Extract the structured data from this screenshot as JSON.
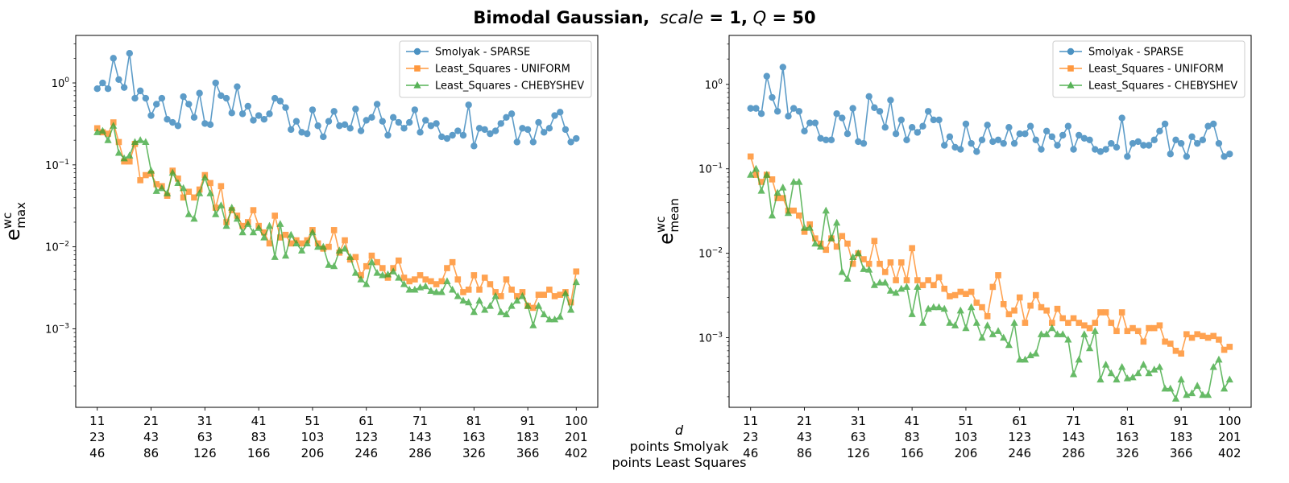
{
  "figure": {
    "title_bold": "Bimodal Gaussian,",
    "title_scale_var": "scale",
    "title_scale_eq": " = 1,",
    "title_q_var": "Q",
    "title_q_eq": " = 50"
  },
  "xaxis_row_labels": [
    "d",
    "points Smolyak",
    "points Least Squares"
  ],
  "x_ticks": [
    {
      "d": "11",
      "smolyak": "23",
      "ls": "46"
    },
    {
      "d": "21",
      "smolyak": "43",
      "ls": "86"
    },
    {
      "d": "31",
      "smolyak": "63",
      "ls": "126"
    },
    {
      "d": "41",
      "smolyak": "83",
      "ls": "166"
    },
    {
      "d": "51",
      "smolyak": "103",
      "ls": "206"
    },
    {
      "d": "61",
      "smolyak": "123",
      "ls": "246"
    },
    {
      "d": "71",
      "smolyak": "143",
      "ls": "286"
    },
    {
      "d": "81",
      "smolyak": "163",
      "ls": "326"
    },
    {
      "d": "91",
      "smolyak": "183",
      "ls": "366"
    },
    {
      "d": "100",
      "smolyak": "201",
      "ls": "402"
    }
  ],
  "series_styles": [
    {
      "name": "Smolyak - SPARSE",
      "color": "#1f77b4",
      "marker": "circle"
    },
    {
      "name": "Least_Squares - UNIFORM",
      "color": "#ff7f0e",
      "marker": "square"
    },
    {
      "name": "Least_Squares - CHEBYSHEV",
      "color": "#2ca02c",
      "marker": "triangle"
    }
  ],
  "chart_data": [
    {
      "type": "line",
      "ylabel_base": "e",
      "ylabel_sup": "wc",
      "ylabel_sub": "max",
      "yscale": "log",
      "ylim": [
        0.00011,
        3.8
      ],
      "xlim": [
        7,
        104
      ],
      "y_tick_labels": [
        {
          "base": "10",
          "exp": "0",
          "value": 1
        },
        {
          "base": "10",
          "exp": "−1",
          "value": 0.1
        },
        {
          "base": "10",
          "exp": "−2",
          "value": 0.01
        },
        {
          "base": "10",
          "exp": "−3",
          "value": 0.001
        }
      ],
      "legend_position": "top-right",
      "x": [
        11,
        12,
        13,
        14,
        15,
        16,
        17,
        18,
        19,
        20,
        21,
        22,
        23,
        24,
        25,
        26,
        27,
        28,
        29,
        30,
        31,
        32,
        33,
        34,
        35,
        36,
        37,
        38,
        39,
        40,
        41,
        42,
        43,
        44,
        45,
        46,
        47,
        48,
        49,
        50,
        51,
        52,
        53,
        54,
        55,
        56,
        57,
        58,
        59,
        60,
        61,
        62,
        63,
        64,
        65,
        66,
        67,
        68,
        69,
        70,
        71,
        72,
        73,
        74,
        75,
        76,
        77,
        78,
        79,
        80,
        81,
        82,
        83,
        84,
        85,
        86,
        87,
        88,
        89,
        90,
        91,
        92,
        93,
        94,
        95,
        96,
        97,
        98,
        99,
        100
      ],
      "series": [
        {
          "name": "Smolyak - SPARSE",
          "values": [
            0.85,
            1.0,
            0.85,
            2.0,
            1.1,
            0.88,
            2.3,
            0.65,
            0.8,
            0.65,
            0.4,
            0.55,
            0.65,
            0.36,
            0.33,
            0.3,
            0.68,
            0.55,
            0.38,
            0.75,
            0.32,
            0.31,
            1.0,
            0.7,
            0.65,
            0.43,
            0.9,
            0.42,
            0.52,
            0.35,
            0.4,
            0.36,
            0.42,
            0.65,
            0.6,
            0.5,
            0.27,
            0.34,
            0.25,
            0.24,
            0.47,
            0.3,
            0.22,
            0.34,
            0.45,
            0.3,
            0.31,
            0.28,
            0.48,
            0.26,
            0.35,
            0.38,
            0.55,
            0.34,
            0.23,
            0.38,
            0.33,
            0.28,
            0.33,
            0.47,
            0.25,
            0.35,
            0.3,
            0.32,
            0.22,
            0.21,
            0.23,
            0.26,
            0.23,
            0.54,
            0.17,
            0.28,
            0.27,
            0.24,
            0.26,
            0.32,
            0.38,
            0.42,
            0.19,
            0.28,
            0.27,
            0.19,
            0.33,
            0.25,
            0.28,
            0.4,
            0.44,
            0.27,
            0.19,
            0.21
          ]
        },
        {
          "name": "Least_Squares - UNIFORM",
          "values": [
            0.28,
            0.25,
            0.24,
            0.33,
            0.19,
            0.11,
            0.11,
            0.18,
            0.065,
            0.075,
            0.078,
            0.058,
            0.055,
            0.042,
            0.085,
            0.068,
            0.04,
            0.047,
            0.04,
            0.05,
            0.075,
            0.06,
            0.03,
            0.055,
            0.02,
            0.028,
            0.024,
            0.018,
            0.02,
            0.028,
            0.018,
            0.015,
            0.011,
            0.024,
            0.013,
            0.014,
            0.011,
            0.012,
            0.011,
            0.012,
            0.016,
            0.011,
            0.0095,
            0.01,
            0.016,
            0.0085,
            0.012,
            0.007,
            0.0075,
            0.0045,
            0.0058,
            0.0078,
            0.0065,
            0.0055,
            0.0042,
            0.0055,
            0.0068,
            0.0042,
            0.0038,
            0.004,
            0.0045,
            0.004,
            0.0038,
            0.0035,
            0.0038,
            0.0055,
            0.0065,
            0.004,
            0.0028,
            0.003,
            0.0045,
            0.003,
            0.0042,
            0.0035,
            0.0028,
            0.0025,
            0.004,
            0.003,
            0.0025,
            0.0028,
            0.0019,
            0.0018,
            0.0026,
            0.0026,
            0.003,
            0.0025,
            0.0026,
            0.0028,
            0.0021,
            0.005
          ]
        },
        {
          "name": "Least_Squares - CHEBYSHEV",
          "values": [
            0.25,
            0.26,
            0.2,
            0.3,
            0.14,
            0.12,
            0.13,
            0.19,
            0.2,
            0.19,
            0.085,
            0.048,
            0.052,
            0.045,
            0.08,
            0.06,
            0.052,
            0.025,
            0.022,
            0.045,
            0.07,
            0.045,
            0.025,
            0.032,
            0.018,
            0.03,
            0.022,
            0.015,
            0.019,
            0.015,
            0.017,
            0.013,
            0.018,
            0.0075,
            0.019,
            0.0078,
            0.014,
            0.011,
            0.009,
            0.011,
            0.015,
            0.01,
            0.01,
            0.006,
            0.0058,
            0.009,
            0.0095,
            0.0075,
            0.0048,
            0.004,
            0.0035,
            0.0065,
            0.0048,
            0.0045,
            0.0046,
            0.005,
            0.0042,
            0.0035,
            0.003,
            0.003,
            0.0032,
            0.0033,
            0.0029,
            0.0028,
            0.0028,
            0.0038,
            0.003,
            0.0025,
            0.0022,
            0.0021,
            0.0016,
            0.0022,
            0.0017,
            0.0019,
            0.0025,
            0.0016,
            0.0015,
            0.0019,
            0.0022,
            0.0025,
            0.0019,
            0.0011,
            0.0019,
            0.0015,
            0.0013,
            0.0013,
            0.0014,
            0.0027,
            0.0017,
            0.0037
          ]
        }
      ]
    },
    {
      "type": "line",
      "ylabel_base": "e",
      "ylabel_sup": "wc",
      "ylabel_sub": "mean",
      "yscale": "log",
      "ylim": [
        0.00015,
        3.8
      ],
      "xlim": [
        7,
        104
      ],
      "y_tick_labels": [
        {
          "base": "10",
          "exp": "0",
          "value": 1
        },
        {
          "base": "10",
          "exp": "−1",
          "value": 0.1
        },
        {
          "base": "10",
          "exp": "−2",
          "value": 0.01
        },
        {
          "base": "10",
          "exp": "−3",
          "value": 0.001
        }
      ],
      "legend_position": "top-right",
      "x": [
        11,
        12,
        13,
        14,
        15,
        16,
        17,
        18,
        19,
        20,
        21,
        22,
        23,
        24,
        25,
        26,
        27,
        28,
        29,
        30,
        31,
        32,
        33,
        34,
        35,
        36,
        37,
        38,
        39,
        40,
        41,
        42,
        43,
        44,
        45,
        46,
        47,
        48,
        49,
        50,
        51,
        52,
        53,
        54,
        55,
        56,
        57,
        58,
        59,
        60,
        61,
        62,
        63,
        64,
        65,
        66,
        67,
        68,
        69,
        70,
        71,
        72,
        73,
        74,
        75,
        76,
        77,
        78,
        79,
        80,
        81,
        82,
        83,
        84,
        85,
        86,
        87,
        88,
        89,
        90,
        91,
        92,
        93,
        94,
        95,
        96,
        97,
        98,
        99,
        100
      ],
      "series": [
        {
          "name": "Smolyak - SPARSE",
          "values": [
            0.52,
            0.52,
            0.45,
            1.25,
            0.7,
            0.48,
            1.6,
            0.42,
            0.52,
            0.48,
            0.28,
            0.35,
            0.35,
            0.23,
            0.22,
            0.22,
            0.45,
            0.4,
            0.26,
            0.52,
            0.21,
            0.2,
            0.72,
            0.53,
            0.48,
            0.31,
            0.65,
            0.26,
            0.38,
            0.22,
            0.31,
            0.27,
            0.32,
            0.48,
            0.38,
            0.38,
            0.19,
            0.24,
            0.18,
            0.17,
            0.34,
            0.2,
            0.16,
            0.22,
            0.33,
            0.21,
            0.22,
            0.2,
            0.31,
            0.2,
            0.26,
            0.26,
            0.32,
            0.22,
            0.17,
            0.28,
            0.24,
            0.19,
            0.25,
            0.32,
            0.17,
            0.25,
            0.23,
            0.22,
            0.17,
            0.16,
            0.17,
            0.2,
            0.18,
            0.4,
            0.14,
            0.2,
            0.21,
            0.19,
            0.19,
            0.22,
            0.28,
            0.34,
            0.15,
            0.22,
            0.2,
            0.14,
            0.24,
            0.2,
            0.22,
            0.32,
            0.34,
            0.2,
            0.14,
            0.15
          ]
        },
        {
          "name": "Least_Squares - UNIFORM",
          "values": [
            0.14,
            0.085,
            0.07,
            0.085,
            0.075,
            0.045,
            0.045,
            0.032,
            0.032,
            0.028,
            0.018,
            0.022,
            0.015,
            0.013,
            0.011,
            0.015,
            0.012,
            0.016,
            0.013,
            0.0075,
            0.01,
            0.0085,
            0.0075,
            0.014,
            0.0075,
            0.006,
            0.0078,
            0.0048,
            0.0078,
            0.0048,
            0.0115,
            0.0048,
            0.0042,
            0.0048,
            0.0042,
            0.0052,
            0.0038,
            0.0031,
            0.0032,
            0.0035,
            0.0033,
            0.0035,
            0.0026,
            0.0023,
            0.0018,
            0.004,
            0.0055,
            0.0025,
            0.0019,
            0.0021,
            0.003,
            0.0015,
            0.0024,
            0.0032,
            0.0023,
            0.0021,
            0.0015,
            0.0022,
            0.0017,
            0.0015,
            0.0017,
            0.0015,
            0.0014,
            0.0013,
            0.0015,
            0.002,
            0.002,
            0.0015,
            0.0012,
            0.002,
            0.0012,
            0.0013,
            0.0012,
            0.0009,
            0.0013,
            0.0013,
            0.0014,
            0.0009,
            0.00085,
            0.0007,
            0.00065,
            0.0011,
            0.001,
            0.0011,
            0.00105,
            0.001,
            0.00105,
            0.00095,
            0.00072,
            0.00078
          ]
        },
        {
          "name": "Least_Squares - CHEBYSHEV",
          "values": [
            0.085,
            0.1,
            0.055,
            0.085,
            0.028,
            0.052,
            0.06,
            0.03,
            0.07,
            0.07,
            0.02,
            0.02,
            0.013,
            0.012,
            0.032,
            0.015,
            0.023,
            0.006,
            0.005,
            0.009,
            0.01,
            0.0065,
            0.0064,
            0.0042,
            0.0045,
            0.0045,
            0.0036,
            0.0034,
            0.0038,
            0.004,
            0.0019,
            0.004,
            0.0015,
            0.0022,
            0.0023,
            0.0023,
            0.0022,
            0.0015,
            0.0014,
            0.0021,
            0.0013,
            0.0023,
            0.0015,
            0.001,
            0.0014,
            0.0011,
            0.0012,
            0.001,
            0.00082,
            0.0015,
            0.00055,
            0.00055,
            0.00062,
            0.00065,
            0.0011,
            0.0011,
            0.0013,
            0.0011,
            0.0011,
            0.00095,
            0.00037,
            0.00055,
            0.0011,
            0.00075,
            0.0012,
            0.00032,
            0.00048,
            0.00038,
            0.00032,
            0.00045,
            0.00033,
            0.00034,
            0.00038,
            0.00048,
            0.00038,
            0.00042,
            0.00045,
            0.00025,
            0.00025,
            0.00019,
            0.00032,
            0.00021,
            0.00022,
            0.00027,
            0.00021,
            0.00021,
            0.00045,
            0.00055,
            0.00025,
            0.00032
          ]
        }
      ]
    }
  ]
}
